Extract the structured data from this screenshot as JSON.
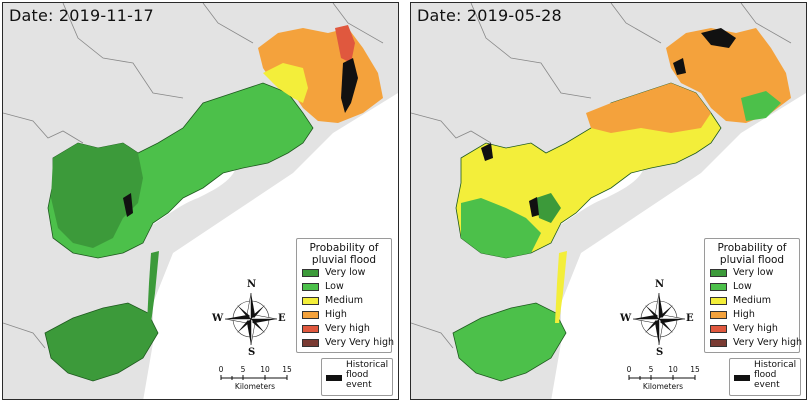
{
  "panels": [
    {
      "date_label": "Date: 2019-11-17",
      "legend_title": "Probability of pluvial flood",
      "historical_label": "Historical flood event",
      "scale_ticks": [
        "0",
        "5",
        "10",
        "15"
      ],
      "scale_unit": "Kilometers",
      "compass": {
        "n": "N",
        "s": "S",
        "e": "E",
        "w": "W"
      }
    },
    {
      "date_label": "Date: 2019-05-28",
      "legend_title": "Probability of pluvial flood",
      "historical_label": "Historical flood event",
      "scale_ticks": [
        "0",
        "5",
        "10",
        "15"
      ],
      "scale_unit": "Kilometers",
      "compass": {
        "n": "N",
        "s": "S",
        "e": "E",
        "w": "W"
      }
    }
  ],
  "legend_classes": [
    {
      "label": "Very low",
      "color": "#3c9a3a"
    },
    {
      "label": "Low",
      "color": "#4cc04a"
    },
    {
      "label": "Medium",
      "color": "#f3ee3a"
    },
    {
      "label": "High",
      "color": "#f4a23c"
    },
    {
      "label": "Very high",
      "color": "#e0583e"
    },
    {
      "label": "Very Very high",
      "color": "#7a3b33"
    }
  ],
  "historical_color": "#111111",
  "land_color": "#e3e3e3",
  "sea_color": "#ffffff"
}
